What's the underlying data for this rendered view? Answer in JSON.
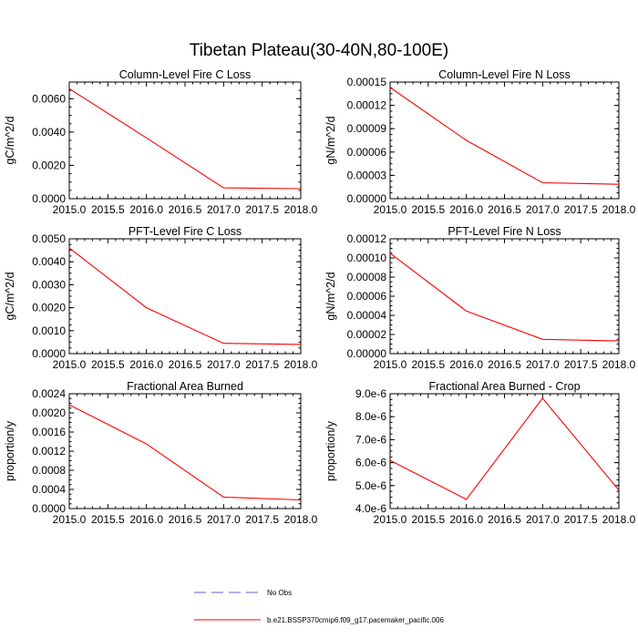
{
  "figure": {
    "title": "Tibetan Plateau(30-40N,80-100E)"
  },
  "legend": {
    "items": [
      {
        "label": "No Obs",
        "color": "#6a5acd",
        "dash": true
      },
      {
        "label": "b.e21.BSSP370cmip6.f09_g17.pacemaker_pacific.006",
        "color": "#ff0000",
        "dash": false
      }
    ]
  },
  "chart_data": [
    {
      "type": "line",
      "title": "Column-Level Fire C Loss",
      "xlabel": "",
      "ylabel": "gC/m^2/d",
      "x": [
        2015,
        2016,
        2017,
        2018
      ],
      "xlim": [
        2015,
        2018
      ],
      "xticks": [
        "2015.0",
        "2015.5",
        "2016.0",
        "2016.5",
        "2017.0",
        "2017.5",
        "2018.0"
      ],
      "ylim": [
        0,
        0.007
      ],
      "yticks": [
        "0.0000",
        "0.0020",
        "0.0040",
        "0.0060"
      ],
      "ytick_values": [
        0,
        0.002,
        0.004,
        0.006
      ],
      "series": [
        {
          "color": "#ff0000",
          "values": [
            0.0066,
            0.00365,
            0.00065,
            0.0006
          ]
        }
      ]
    },
    {
      "type": "line",
      "title": "Column-Level Fire N Loss",
      "xlabel": "",
      "ylabel": "gN/m^2/d",
      "x": [
        2015,
        2016,
        2017,
        2018
      ],
      "xlim": [
        2015,
        2018
      ],
      "xticks": [
        "2015.0",
        "2015.5",
        "2016.0",
        "2016.5",
        "2017.0",
        "2017.5",
        "2018.0"
      ],
      "ylim": [
        0,
        0.00015
      ],
      "yticks": [
        "0.00000",
        "0.00003",
        "0.00006",
        "0.00009",
        "0.00012",
        "0.00015"
      ],
      "ytick_values": [
        0,
        3e-05,
        6e-05,
        9e-05,
        0.00012,
        0.00015
      ],
      "series": [
        {
          "color": "#ff0000",
          "values": [
            0.000143,
            7.5e-05,
            2.05e-05,
            1.85e-05
          ]
        }
      ]
    },
    {
      "type": "line",
      "title": "PFT-Level Fire C Loss",
      "xlabel": "",
      "ylabel": "gC/m^2/d",
      "x": [
        2015,
        2016,
        2017,
        2018
      ],
      "xlim": [
        2015,
        2018
      ],
      "xticks": [
        "2015.0",
        "2015.5",
        "2016.0",
        "2016.5",
        "2017.0",
        "2017.5",
        "2018.0"
      ],
      "ylim": [
        0,
        0.005
      ],
      "yticks": [
        "0.0000",
        "0.0010",
        "0.0020",
        "0.0030",
        "0.0040",
        "0.0050"
      ],
      "ytick_values": [
        0,
        0.001,
        0.002,
        0.003,
        0.004,
        0.005
      ],
      "series": [
        {
          "color": "#ff0000",
          "values": [
            0.0046,
            0.002,
            0.00045,
            0.0004
          ]
        }
      ]
    },
    {
      "type": "line",
      "title": "PFT-Level Fire N Loss",
      "xlabel": "",
      "ylabel": "gN/m^2/d",
      "x": [
        2015,
        2016,
        2017,
        2018
      ],
      "xlim": [
        2015,
        2018
      ],
      "xticks": [
        "2015.0",
        "2015.5",
        "2016.0",
        "2016.5",
        "2017.0",
        "2017.5",
        "2018.0"
      ],
      "ylim": [
        0,
        0.00012
      ],
      "yticks": [
        "0.00000",
        "0.00002",
        "0.00004",
        "0.00006",
        "0.00008",
        "0.00010",
        "0.00012"
      ],
      "ytick_values": [
        0,
        2e-05,
        4e-05,
        6e-05,
        8e-05,
        0.0001,
        0.00012
      ],
      "series": [
        {
          "color": "#ff0000",
          "values": [
            0.000105,
            4.45e-05,
            1.5e-05,
            1.32e-05
          ]
        }
      ]
    },
    {
      "type": "line",
      "title": "Fractional Area Burned",
      "xlabel": "",
      "ylabel": "proportion/y",
      "x": [
        2015,
        2016,
        2017,
        2018
      ],
      "xlim": [
        2015,
        2018
      ],
      "xticks": [
        "2015.0",
        "2015.5",
        "2016.0",
        "2016.5",
        "2017.0",
        "2017.5",
        "2018.0"
      ],
      "ylim": [
        0,
        0.0024
      ],
      "yticks": [
        "0.0000",
        "0.0004",
        "0.0008",
        "0.0012",
        "0.0016",
        "0.0020",
        "0.0024"
      ],
      "ytick_values": [
        0,
        0.0004,
        0.0008,
        0.0012,
        0.0016,
        0.002,
        0.0024
      ],
      "series": [
        {
          "color": "#ff0000",
          "values": [
            0.00217,
            0.00135,
            0.00024,
            0.00018
          ]
        }
      ]
    },
    {
      "type": "line",
      "title": "Fractional Area Burned - Crop",
      "xlabel": "",
      "ylabel": "proportion/y",
      "x": [
        2015,
        2016,
        2017,
        2018
      ],
      "xlim": [
        2015,
        2018
      ],
      "xticks": [
        "2015.0",
        "2015.5",
        "2016.0",
        "2016.5",
        "2017.0",
        "2017.5",
        "2018.0"
      ],
      "ylim": [
        4e-06,
        9e-06
      ],
      "yticks": [
        "4.0e-6",
        "5.0e-6",
        "6.0e-6",
        "7.0e-6",
        "8.0e-6",
        "9.0e-6"
      ],
      "ytick_values": [
        4e-06,
        5e-06,
        6e-06,
        7e-06,
        8e-06,
        9e-06
      ],
      "series": [
        {
          "color": "#ff0000",
          "values": [
            6.1e-06,
            4.4e-06,
            8.8e-06,
            4.8e-06
          ]
        }
      ]
    }
  ]
}
